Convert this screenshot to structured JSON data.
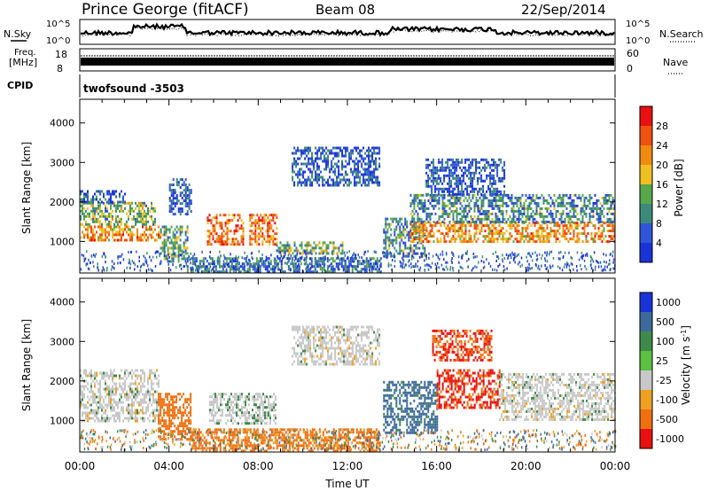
{
  "header": {
    "station": "Prince George (fitACF)",
    "beam": "Beam 08",
    "date": "22/Sep/2014"
  },
  "noise_panel": {
    "left_label": "N.Sky",
    "right_label": "N.Search",
    "ticks": [
      "10^5",
      "10^0"
    ]
  },
  "freq_panel": {
    "left_label_1": "Freq.",
    "left_label_2": "[MHz]",
    "left_ticks": [
      "18",
      "8"
    ],
    "right_label": "Nave",
    "right_ticks": [
      "60",
      "0"
    ]
  },
  "cpid_panel": {
    "label": "CPID",
    "value": "twofsound -3503"
  },
  "colors": {
    "power_scale": [
      "#1a33d9",
      "#2f55d8",
      "#3c8a7a",
      "#57a84a",
      "#f0c020",
      "#f08a10",
      "#f05010",
      "#e81010"
    ],
    "velocity_scale": [
      "#1a33d9",
      "#3c6a9a",
      "#3f8a4a",
      "#5cc040",
      "#c8c8c8",
      "#f0a020",
      "#f07010",
      "#e81010"
    ]
  },
  "chart_data": [
    {
      "type": "heatmap",
      "name": "power",
      "ylabel": "Slant Range [km]",
      "xlabel": "",
      "ylim": [
        200,
        4600
      ],
      "yticks": [
        1000,
        2000,
        3000,
        4000
      ],
      "xlim": [
        0,
        24
      ],
      "colorbar_label": "Power [dB]",
      "colorbar_ticks": [
        "28",
        "24",
        "20",
        "16",
        "12",
        "8",
        "4"
      ],
      "value_range": [
        0,
        32
      ],
      "regions": [
        {
          "t0": 0.0,
          "t1": 3.6,
          "r0": 1000,
          "r1": 1400,
          "v": 22
        },
        {
          "t0": 0.0,
          "t1": 3.4,
          "r0": 1400,
          "r1": 2000,
          "v": 14
        },
        {
          "t0": 0.0,
          "t1": 2.0,
          "r0": 2000,
          "r1": 2300,
          "v": 6
        },
        {
          "t0": 3.6,
          "t1": 4.8,
          "r0": 500,
          "r1": 1400,
          "v": 12
        },
        {
          "t0": 4.0,
          "t1": 5.0,
          "r0": 1700,
          "r1": 2600,
          "v": 4
        },
        {
          "t0": 5.7,
          "t1": 7.3,
          "r0": 900,
          "r1": 1700,
          "v": 24
        },
        {
          "t0": 7.6,
          "t1": 8.8,
          "r0": 900,
          "r1": 1700,
          "v": 24
        },
        {
          "t0": 8.8,
          "t1": 11.8,
          "r0": 700,
          "r1": 1000,
          "v": 14
        },
        {
          "t0": 4.8,
          "t1": 13.5,
          "r0": 250,
          "r1": 600,
          "v": 8
        },
        {
          "t0": 9.5,
          "t1": 13.4,
          "r0": 2400,
          "r1": 3400,
          "v": 5
        },
        {
          "t0": 13.6,
          "t1": 15.5,
          "r0": 600,
          "r1": 1600,
          "v": 10
        },
        {
          "t0": 14.8,
          "t1": 24.0,
          "r0": 1000,
          "r1": 1500,
          "v": 22
        },
        {
          "t0": 14.8,
          "t1": 24.0,
          "r0": 1500,
          "r1": 2200,
          "v": 10
        },
        {
          "t0": 15.5,
          "t1": 19.0,
          "r0": 2200,
          "r1": 3100,
          "v": 5
        }
      ]
    },
    {
      "type": "heatmap",
      "name": "velocity",
      "ylabel": "Slant Range [km]",
      "xlabel": "Time UT",
      "ylim": [
        200,
        4600
      ],
      "yticks": [
        1000,
        2000,
        3000,
        4000
      ],
      "xlim": [
        0,
        24
      ],
      "xticks": [
        "00:00",
        "04:00",
        "08:00",
        "12:00",
        "16:00",
        "20:00",
        "00:00"
      ],
      "colorbar_label": "Velocity [m s^-1]",
      "colorbar_ticks": [
        "1000",
        "500",
        "100",
        "25",
        "-25",
        "-100",
        "-500",
        "-1000"
      ],
      "regions": [
        {
          "t0": 0.0,
          "t1": 3.5,
          "r0": 1000,
          "r1": 2300,
          "v": 0
        },
        {
          "t0": 3.5,
          "t1": 5.0,
          "r0": 500,
          "r1": 1700,
          "v": -300
        },
        {
          "t0": 5.8,
          "t1": 8.8,
          "r0": 900,
          "r1": 1700,
          "v": 10
        },
        {
          "t0": 5.0,
          "t1": 13.5,
          "r0": 250,
          "r1": 800,
          "v": -200
        },
        {
          "t0": 9.5,
          "t1": 13.4,
          "r0": 2400,
          "r1": 3400,
          "v": 0
        },
        {
          "t0": 13.6,
          "t1": 16.0,
          "r0": 700,
          "r1": 2000,
          "v": 200
        },
        {
          "t0": 16.0,
          "t1": 18.8,
          "r0": 1300,
          "r1": 2300,
          "v": -600
        },
        {
          "t0": 18.8,
          "t1": 24.0,
          "r0": 1000,
          "r1": 2200,
          "v": 0
        },
        {
          "t0": 15.8,
          "t1": 18.5,
          "r0": 2500,
          "r1": 3300,
          "v": -500
        }
      ]
    }
  ]
}
